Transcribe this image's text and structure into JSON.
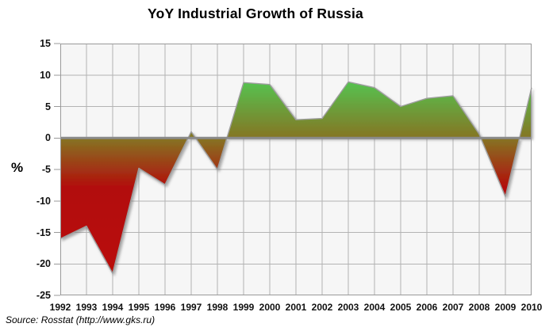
{
  "chart_data": {
    "type": "area",
    "title": "YoY Industrial Growth of Russia",
    "ylabel": "%",
    "xlabel": "",
    "source": "Source: Rosstat (http://www.gks.ru)",
    "x": [
      1992,
      1993,
      1994,
      1995,
      1996,
      1997,
      1998,
      1999,
      2000,
      2001,
      2002,
      2003,
      2004,
      2005,
      2006,
      2007,
      2008,
      2009,
      2010
    ],
    "values": [
      -16,
      -14,
      -21.5,
      -4.8,
      -7.4,
      1.0,
      -5.0,
      8.8,
      8.5,
      2.9,
      3.1,
      8.9,
      8.0,
      5.0,
      6.3,
      6.7,
      0.6,
      -9.3,
      8.0
    ],
    "ylim": [
      -25,
      15
    ],
    "y_ticks": [
      15,
      10,
      5,
      0,
      -5,
      -10,
      -15,
      -20,
      -25
    ],
    "baseline": 0,
    "grid": true,
    "legend": "none",
    "colors": {
      "plot_bg": "#f6f6f6",
      "gridline": "#b3b3b3",
      "axis_border": "#999999",
      "zero_line": "#8a8a8a",
      "curve_stroke": "#9d9d9d",
      "shadow": "#777777",
      "gradient_stops": [
        {
          "offset": "0%",
          "color": "#3ecd3e"
        },
        {
          "offset": "15%",
          "color": "#55c350"
        },
        {
          "offset": "37.5%",
          "color": "#857523"
        },
        {
          "offset": "57%",
          "color": "#b20e0b"
        },
        {
          "offset": "100%",
          "color": "#bb0505"
        }
      ]
    }
  }
}
